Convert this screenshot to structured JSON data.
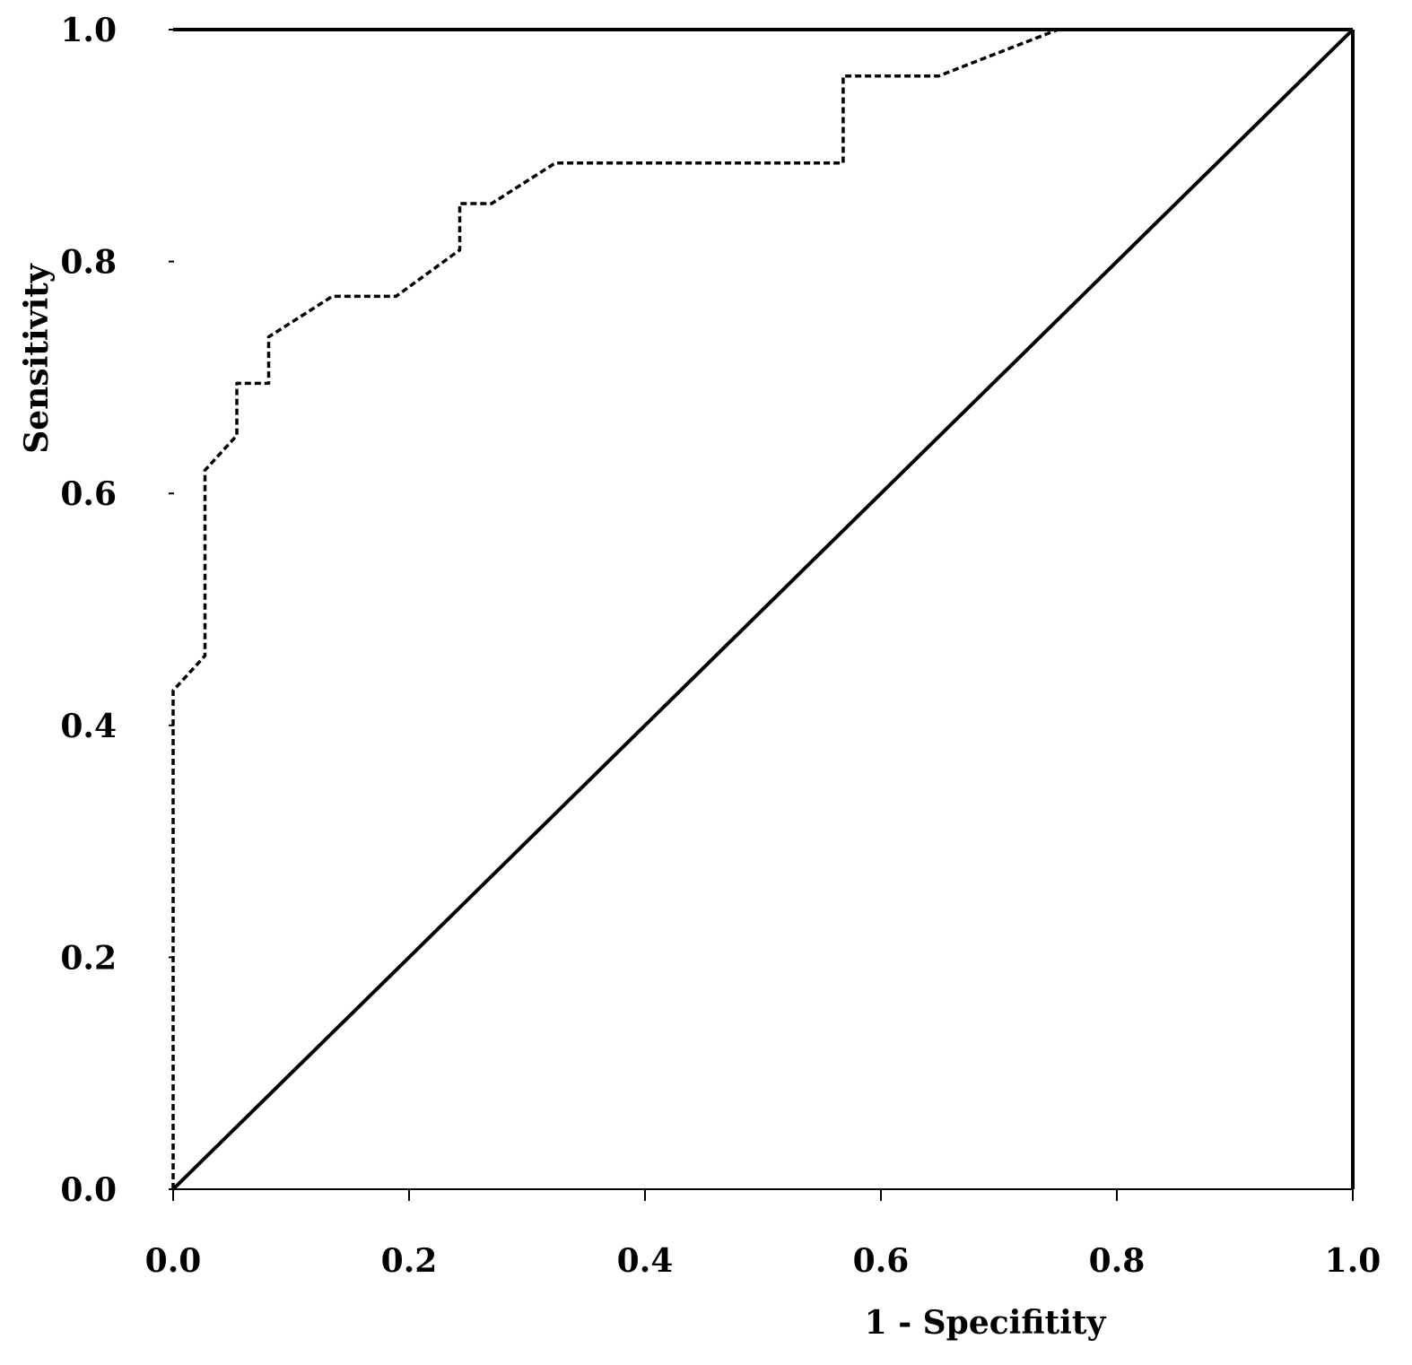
{
  "chart_data": {
    "type": "line",
    "title": "",
    "xlabel": "1 - Specifitity",
    "ylabel": "Sensitivity",
    "xlim": [
      0,
      1
    ],
    "ylim": [
      0,
      1
    ],
    "grid": false,
    "x_ticks": [
      "0.0",
      "0.2",
      "0.4",
      "0.6",
      "0.8",
      "1.0"
    ],
    "y_ticks": [
      "0.0",
      "0.2",
      "0.4",
      "0.6",
      "0.8",
      "1.0"
    ],
    "series": [
      {
        "style": "dashed",
        "x": [
          0.0,
          0.0,
          0.027,
          0.027,
          0.054,
          0.054,
          0.081,
          0.081,
          0.135,
          0.189,
          0.243,
          0.243,
          0.27,
          0.324,
          0.568,
          0.568,
          0.649,
          0.75
        ],
        "y": [
          0.0,
          0.43,
          0.46,
          0.62,
          0.65,
          0.695,
          0.695,
          0.735,
          0.77,
          0.77,
          0.81,
          0.85,
          0.85,
          0.885,
          0.885,
          0.96,
          0.96,
          1.0
        ]
      },
      {
        "style": "solid",
        "x": [
          0.0,
          1.0
        ],
        "y": [
          0.0,
          1.0
        ]
      }
    ]
  }
}
